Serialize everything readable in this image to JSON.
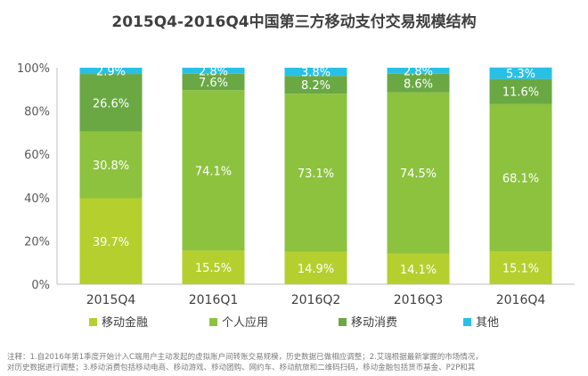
{
  "chart_data": {
    "type": "bar",
    "stacked": true,
    "title": "2015Q4-2016Q4中国第三方移动支付交易规模结构",
    "categories": [
      "2015Q4",
      "2016Q1",
      "2016Q2",
      "2016Q3",
      "2016Q4"
    ],
    "series": [
      {
        "name": "移动金融",
        "color": "#b5cf2e",
        "values": [
          39.7,
          15.5,
          14.9,
          14.1,
          15.1
        ],
        "labels": [
          "39.7%",
          "15.5%",
          "14.9%",
          "14.1%",
          "15.1%"
        ]
      },
      {
        "name": "个人应用",
        "color": "#8dc23f",
        "values": [
          30.8,
          74.1,
          73.1,
          74.5,
          68.1
        ],
        "labels": [
          "30.8%",
          "74.1%",
          "73.1%",
          "74.5%",
          "68.1%"
        ]
      },
      {
        "name": "移动消费",
        "color": "#6aa844",
        "values": [
          26.6,
          7.6,
          8.2,
          8.6,
          11.6
        ],
        "labels": [
          "26.6%",
          "7.6%",
          "8.2%",
          "8.6%",
          "11.6%"
        ]
      },
      {
        "name": "其他",
        "color": "#29c0e6",
        "values": [
          2.9,
          2.8,
          3.8,
          2.8,
          5.3
        ],
        "labels": [
          "2.9%",
          "2.8%",
          "3.8%",
          "2.8%",
          "5.3%"
        ]
      }
    ],
    "ylim": [
      0,
      100
    ],
    "yticks": [
      "0%",
      "20%",
      "40%",
      "60%",
      "80%",
      "100%"
    ],
    "grid": false,
    "legend": "bottom"
  },
  "notes": {
    "line1": "注释：1.自2016年第1季度开始计入C端用户主动发起的虚拟账户间转账交易规模，历史数据已做相应调整；2.艾瑞根据最新掌握的市场情况，",
    "line2": "对历史数据进行调整；3.移动消费包括移动电商、移动游戏、移动团购、网约车、移动航旅和二维码扫码，移动金融包括货币基金、P2P和其"
  }
}
